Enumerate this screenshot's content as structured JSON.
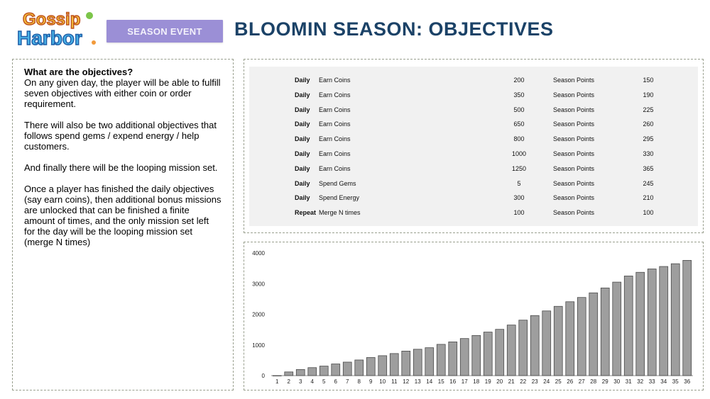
{
  "header": {
    "logo_text": "Gossip Harbor",
    "badge": "SEASON EVENT",
    "title": "BLOOMIN SEASON: OBJECTIVES"
  },
  "explanation": {
    "question": "What are the objectives?",
    "intro": "On any given day, the player will be able to fulfill seven objectives with either coin or order requirement.",
    "p1": "There will also be two additional objectives that follows spend gems / expend energy / help customers.",
    "p2": "And finally there will be the looping mission set.",
    "p3": "Once a player has finished the daily objectives (say earn coins), then additional bonus missions are unlocked that can be finished a finite amount of times, and the only mission set left for the day will be the looping mission set (merge N times)"
  },
  "objectives": [
    {
      "period": "Daily",
      "task": "Earn Coins",
      "amount": "200",
      "reward": "Season Points",
      "points": "150"
    },
    {
      "period": "Daily",
      "task": "Earn Coins",
      "amount": "350",
      "reward": "Season Points",
      "points": "190"
    },
    {
      "period": "Daily",
      "task": "Earn Coins",
      "amount": "500",
      "reward": "Season Points",
      "points": "225"
    },
    {
      "period": "Daily",
      "task": "Earn Coins",
      "amount": "650",
      "reward": "Season Points",
      "points": "260"
    },
    {
      "period": "Daily",
      "task": "Earn Coins",
      "amount": "800",
      "reward": "Season Points",
      "points": "295"
    },
    {
      "period": "Daily",
      "task": "Earn Coins",
      "amount": "1000",
      "reward": "Season Points",
      "points": "330"
    },
    {
      "period": "Daily",
      "task": "Earn Coins",
      "amount": "1250",
      "reward": "Season Points",
      "points": "365"
    },
    {
      "period": "Daily",
      "task": "Spend Gems",
      "amount": "5",
      "reward": "Season Points",
      "points": "245"
    },
    {
      "period": "Daily",
      "task": "Spend Energy",
      "amount": "300",
      "reward": "Season Points",
      "points": "210"
    },
    {
      "period": "Repeat",
      "task": "Merge N times",
      "amount": "100",
      "reward": "Season Points",
      "points": "100"
    }
  ],
  "chart_data": {
    "type": "bar",
    "categories": [
      "1",
      "2",
      "3",
      "4",
      "5",
      "6",
      "7",
      "8",
      "9",
      "10",
      "11",
      "12",
      "13",
      "14",
      "15",
      "16",
      "17",
      "18",
      "19",
      "20",
      "21",
      "22",
      "23",
      "24",
      "25",
      "26",
      "27",
      "28",
      "29",
      "30",
      "31",
      "32",
      "33",
      "34",
      "35",
      "36"
    ],
    "values": [
      0,
      120,
      200,
      260,
      310,
      380,
      440,
      510,
      590,
      650,
      720,
      800,
      860,
      910,
      1020,
      1100,
      1210,
      1310,
      1420,
      1510,
      1650,
      1810,
      1960,
      2110,
      2260,
      2410,
      2550,
      2700,
      2860,
      3050,
      3250,
      3370,
      3480,
      3560,
      3650,
      3760
    ],
    "yticks": [
      0,
      1000,
      2000,
      3000,
      4000
    ],
    "ylim": [
      0,
      4000
    ],
    "bar_color": "#9e9e9e",
    "grid": false
  }
}
